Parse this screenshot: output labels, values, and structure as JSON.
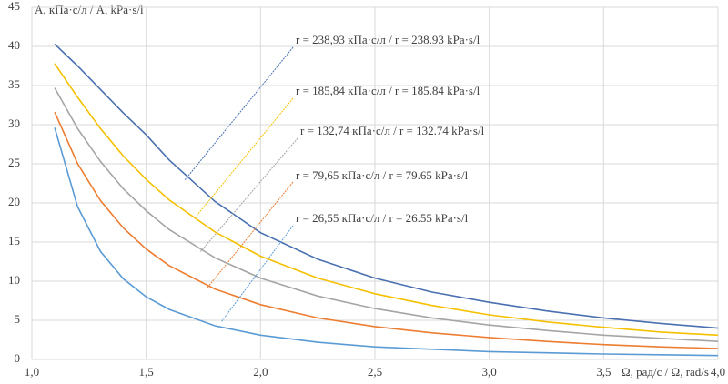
{
  "chart_data": {
    "type": "line",
    "y_label": "A, кПа·с/л / A, kPa·s/l",
    "x_label": "Ω, рад/с / Ω, rad/s",
    "x": [
      1.1,
      1.2,
      1.3,
      1.4,
      1.5,
      1.6,
      1.8,
      2.0,
      2.25,
      2.5,
      2.75,
      3.0,
      3.25,
      3.5,
      3.75,
      4.0
    ],
    "series": [
      {
        "name": "r = 238,93 кПа·с/л / r = 238.93 kPa·s/l",
        "color": "#4a70b0",
        "values": [
          40.3,
          37.5,
          34.5,
          31.5,
          28.7,
          25.5,
          20.2,
          16.2,
          12.8,
          10.4,
          8.6,
          7.3,
          6.2,
          5.3,
          4.6,
          4.0
        ]
      },
      {
        "name": "r = 185,84 кПа·с/л / r =  185.84 kPa·s/l",
        "color": "#f5c000",
        "values": [
          37.8,
          33.5,
          29.5,
          26.0,
          23.0,
          20.4,
          16.3,
          13.2,
          10.4,
          8.4,
          6.9,
          5.7,
          4.8,
          4.1,
          3.5,
          3.1
        ]
      },
      {
        "name": "r = 132,74 кПа·с/л / r =  132.74 kPa·s/l",
        "color": "#a5a5a5",
        "values": [
          34.7,
          29.5,
          25.3,
          21.8,
          19.0,
          16.6,
          13.0,
          10.4,
          8.1,
          6.5,
          5.3,
          4.4,
          3.7,
          3.1,
          2.7,
          2.3
        ]
      },
      {
        "name": "r = 79,65 кПа·с/л / r =  79.65 kPa·s/l",
        "color": "#ed7d31",
        "values": [
          31.6,
          25.0,
          20.3,
          16.8,
          14.1,
          12.0,
          9.0,
          7.0,
          5.3,
          4.2,
          3.4,
          2.8,
          2.3,
          1.9,
          1.6,
          1.4
        ]
      },
      {
        "name": "r = 26,55 кПа·с/л / r =  26.55 kPa·s/l",
        "color": "#5b9bd5",
        "values": [
          29.6,
          19.5,
          13.8,
          10.3,
          8.0,
          6.4,
          4.3,
          3.1,
          2.2,
          1.6,
          1.3,
          1.0,
          0.85,
          0.7,
          0.6,
          0.5
        ]
      }
    ],
    "xlim": [
      1.0,
      4.0
    ],
    "xticks": [
      {
        "value": 1.0,
        "label": "1,0"
      },
      {
        "value": 1.5,
        "label": "1,5"
      },
      {
        "value": 2.0,
        "label": "2,0"
      },
      {
        "value": 2.5,
        "label": "2,5"
      },
      {
        "value": 3.0,
        "label": "3,0"
      },
      {
        "value": 3.5,
        "label": "3,5"
      },
      {
        "value": 4.0,
        "label": "4,0"
      }
    ],
    "ylim": [
      0,
      45
    ],
    "yticks": [
      0,
      5,
      10,
      15,
      20,
      25,
      30,
      35,
      40,
      45
    ],
    "grid": true
  }
}
